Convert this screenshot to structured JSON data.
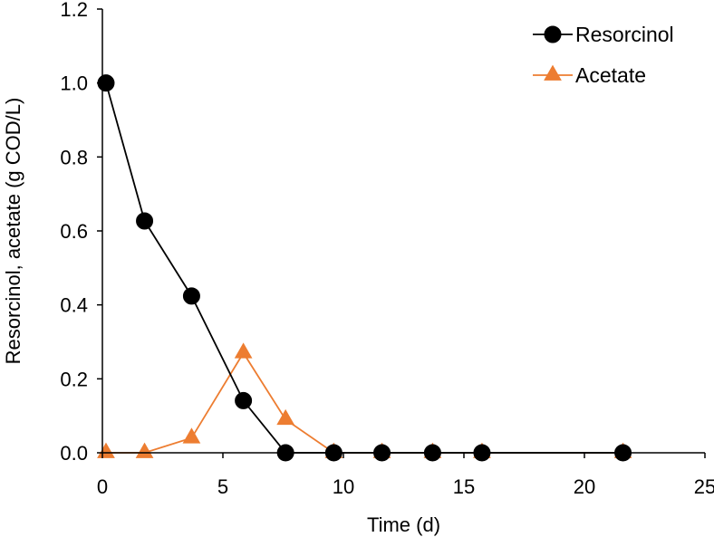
{
  "chart_data": {
    "type": "line",
    "title": "",
    "xlabel": "Time (d)",
    "ylabel": "Resorcinol, acetate (g COD/L)",
    "xlim": [
      0,
      25
    ],
    "ylim": [
      0,
      1.2
    ],
    "xticks": [
      0,
      5,
      10,
      15,
      20,
      25
    ],
    "yticks": [
      0.0,
      0.2,
      0.4,
      0.6,
      0.8,
      1.0,
      1.2
    ],
    "xtick_labels": [
      "0",
      "5",
      "10",
      "15",
      "20",
      "25"
    ],
    "ytick_labels": [
      "0.0",
      "0.2",
      "0.4",
      "0.6",
      "0.8",
      "1.0",
      "1.2"
    ],
    "grid": false,
    "legend_position": "top-right",
    "series": [
      {
        "name": "Resorcinol",
        "color": "#000000",
        "marker": "circle",
        "x": [
          0.15,
          1.75,
          3.7,
          5.85,
          7.6,
          9.6,
          11.6,
          13.7,
          15.75,
          21.6
        ],
        "y": [
          1.0,
          0.627,
          0.424,
          0.141,
          0.0,
          0.0,
          0.0,
          0.0,
          0.0,
          0.0
        ]
      },
      {
        "name": "Acetate",
        "color": "#ED7D31",
        "marker": "triangle",
        "x": [
          0.15,
          1.75,
          3.7,
          5.85,
          7.6,
          9.6,
          11.6,
          13.7,
          15.75,
          21.6
        ],
        "y": [
          0.0,
          0.0,
          0.04,
          0.27,
          0.09,
          0.0,
          0.0,
          0.0,
          0.0,
          0.0
        ]
      }
    ]
  }
}
